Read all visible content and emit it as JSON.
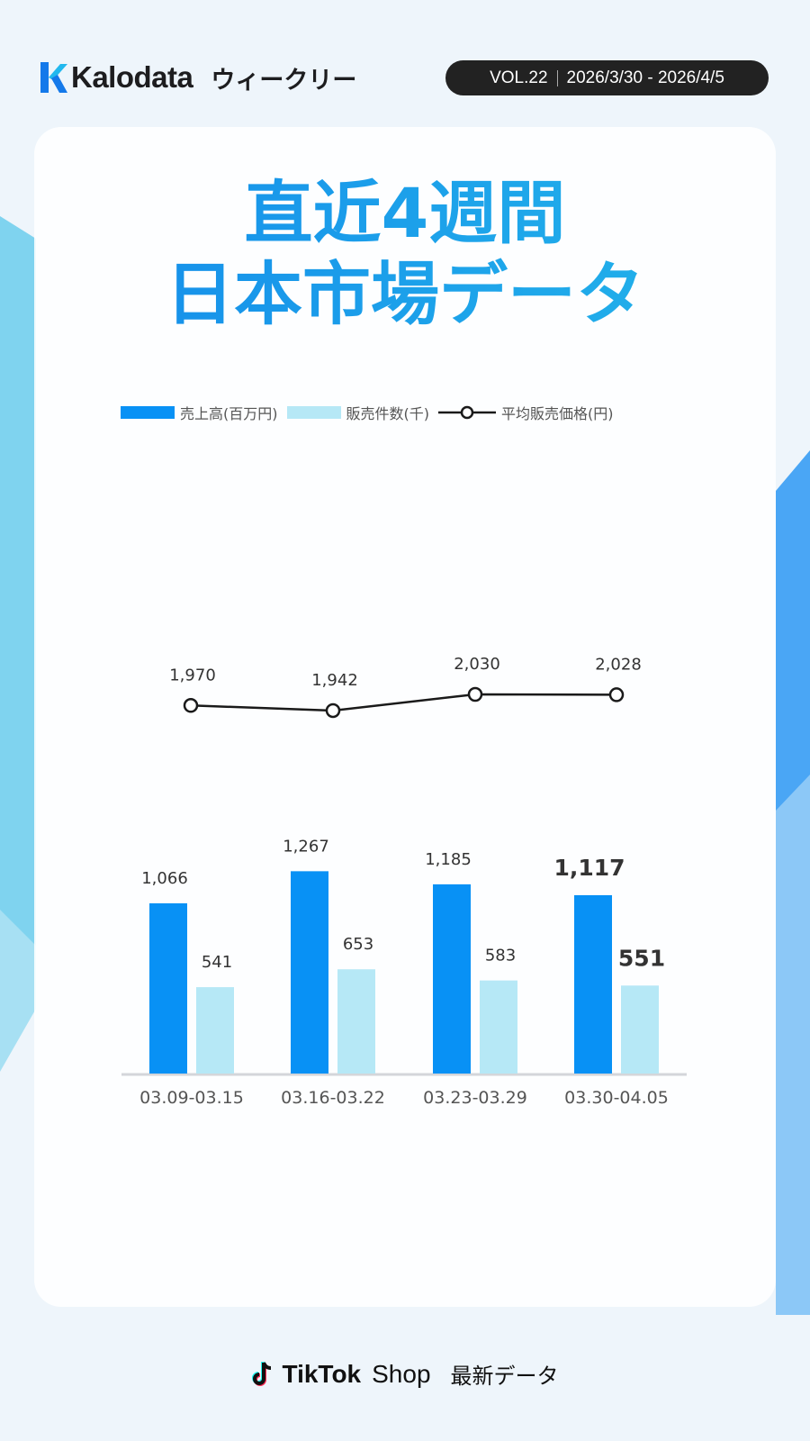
{
  "header": {
    "brand": "Kalodata",
    "subtitle": "ウィークリー",
    "volume": "VOL.22",
    "date_range": "2026/3/30 - 2026/4/5"
  },
  "title": {
    "line1": "直近4週間",
    "line2": "日本市場データ"
  },
  "colors": {
    "sales": "#0891f5",
    "units": "#b6e8f6",
    "price": "#1a1a1a",
    "title_start": "#1389ea",
    "title_end": "#25b7ea"
  },
  "chart_data": {
    "type": "bar+line",
    "categories": [
      "03.09-03.15",
      "03.16-03.22",
      "03.23-03.29",
      "03.30-04.05"
    ],
    "series": [
      {
        "name": "売上高(百万円)",
        "type": "bar",
        "values": [
          1066,
          1267,
          1185,
          1117
        ],
        "labels": [
          "1,066",
          "1,267",
          "1,185",
          "1,117"
        ]
      },
      {
        "name": "販売件数(千)",
        "type": "bar",
        "values": [
          541,
          653,
          583,
          551
        ],
        "labels": [
          "541",
          "653",
          "583",
          "551"
        ]
      },
      {
        "name": "平均販売価格(円)",
        "type": "line",
        "values": [
          1970,
          1942,
          2030,
          2028
        ],
        "labels": [
          "1,970",
          "1,942",
          "2,030",
          "2,028"
        ]
      }
    ],
    "legend_position": "top",
    "grid": false,
    "highlight_last": true
  },
  "footer": {
    "brand": "TikTok",
    "shop": "Shop",
    "label": "最新データ"
  }
}
